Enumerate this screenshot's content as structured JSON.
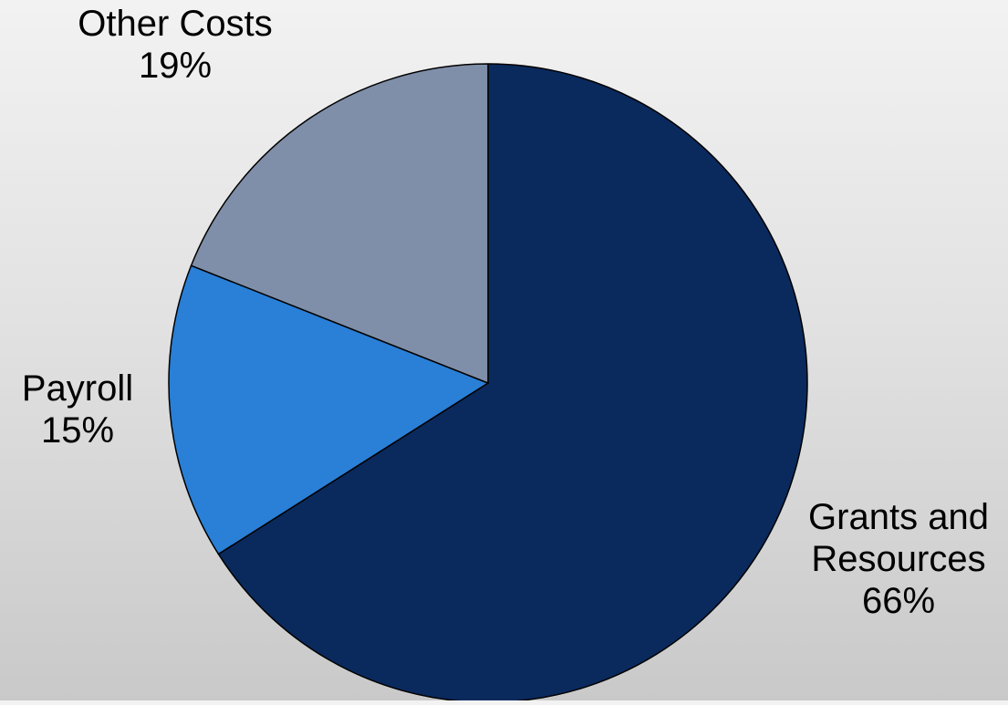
{
  "chart_data": {
    "type": "pie",
    "title": "",
    "slices": [
      {
        "label": "Grants and Resources",
        "label_lines": [
          "Grants and",
          "Resources",
          "66%"
        ],
        "value": 66,
        "percent_label": "66%",
        "color": "#0a2a5e"
      },
      {
        "label": "Payroll",
        "label_lines": [
          "Payroll",
          "15%"
        ],
        "value": 15,
        "percent_label": "15%",
        "color": "#2a7fd6"
      },
      {
        "label": "Other Costs",
        "label_lines": [
          "Other Costs",
          "19%"
        ],
        "value": 19,
        "percent_label": "19%",
        "color": "#7f8fa9"
      }
    ],
    "start": "12 o'clock",
    "direction": "clockwise",
    "legend": "none",
    "slice_outline_color": "#000000"
  }
}
